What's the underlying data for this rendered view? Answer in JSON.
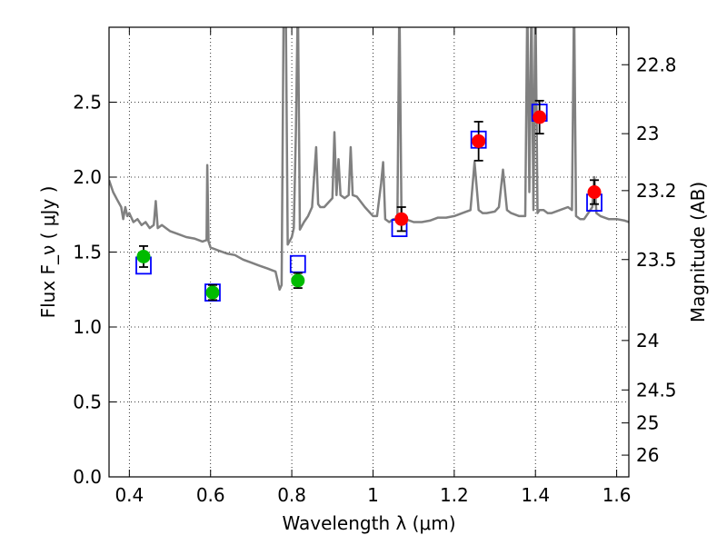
{
  "chart_data": {
    "type": "line",
    "title": "",
    "xlabel": "Wavelength  λ (μm)",
    "ylabel": "Flux  F_ν  ( μJy )",
    "y2label": "Magnitude (AB)",
    "xlim": [
      0.35,
      1.63
    ],
    "ylim": [
      0.0,
      3.0
    ],
    "grid": true,
    "xticks": [
      0.4,
      0.6,
      0.8,
      1.0,
      1.2,
      1.4,
      1.6
    ],
    "xtick_labels": [
      "0.4",
      "0.6",
      "0.8",
      "1",
      "1.2",
      "1.4",
      "1.6"
    ],
    "yticks": [
      0.0,
      0.5,
      1.0,
      1.5,
      2.0,
      2.5
    ],
    "ytick_labels": [
      "0.0",
      "0.5",
      "1.0",
      "1.5",
      "2.0",
      "2.5"
    ],
    "y2ticks": [
      {
        "label": "22.8",
        "flux": 2.75
      },
      {
        "label": "23",
        "flux": 2.29
      },
      {
        "label": "23.2",
        "flux": 1.91
      },
      {
        "label": "23.5",
        "flux": 1.45
      },
      {
        "label": "24",
        "flux": 0.91
      },
      {
        "label": "24.5",
        "flux": 0.58
      },
      {
        "label": "25",
        "flux": 0.36
      },
      {
        "label": "26",
        "flux": 0.145
      }
    ],
    "series": [
      {
        "kind": "model_spectrum",
        "color": "#808080",
        "x": [
          0.35,
          0.36,
          0.37,
          0.38,
          0.385,
          0.39,
          0.395,
          0.4,
          0.41,
          0.42,
          0.43,
          0.44,
          0.45,
          0.46,
          0.465,
          0.47,
          0.48,
          0.5,
          0.52,
          0.54,
          0.56,
          0.58,
          0.59,
          0.592,
          0.595,
          0.6,
          0.62,
          0.64,
          0.66,
          0.68,
          0.7,
          0.72,
          0.74,
          0.75,
          0.76,
          0.77,
          0.775,
          0.78,
          0.785,
          0.79,
          0.8,
          0.805,
          0.81,
          0.815,
          0.82,
          0.83,
          0.84,
          0.85,
          0.86,
          0.865,
          0.87,
          0.88,
          0.9,
          0.905,
          0.91,
          0.915,
          0.92,
          0.93,
          0.94,
          0.945,
          0.95,
          0.96,
          0.98,
          1.0,
          1.01,
          1.02,
          1.025,
          1.03,
          1.04,
          1.05,
          1.06,
          1.065,
          1.07,
          1.08,
          1.1,
          1.12,
          1.14,
          1.16,
          1.18,
          1.2,
          1.22,
          1.24,
          1.25,
          1.26,
          1.27,
          1.28,
          1.3,
          1.31,
          1.32,
          1.33,
          1.34,
          1.36,
          1.375,
          1.38,
          1.385,
          1.39,
          1.395,
          1.4,
          1.405,
          1.41,
          1.42,
          1.43,
          1.44,
          1.46,
          1.48,
          1.49,
          1.495,
          1.5,
          1.51,
          1.52,
          1.54,
          1.545,
          1.55,
          1.56,
          1.58,
          1.6,
          1.62,
          1.63
        ],
        "y": [
          1.98,
          1.9,
          1.85,
          1.8,
          1.72,
          1.8,
          1.74,
          1.76,
          1.7,
          1.72,
          1.68,
          1.7,
          1.66,
          1.68,
          1.84,
          1.66,
          1.68,
          1.64,
          1.62,
          1.6,
          1.59,
          1.57,
          1.58,
          2.08,
          1.57,
          1.53,
          1.51,
          1.49,
          1.48,
          1.45,
          1.43,
          1.41,
          1.39,
          1.38,
          1.37,
          1.25,
          1.28,
          3.2,
          3.2,
          1.55,
          1.6,
          1.66,
          2.3,
          3.2,
          1.65,
          1.7,
          1.74,
          1.8,
          2.2,
          1.82,
          1.8,
          1.8,
          1.86,
          2.3,
          1.88,
          2.12,
          1.88,
          1.86,
          1.88,
          2.2,
          1.88,
          1.87,
          1.8,
          1.74,
          1.74,
          1.96,
          2.1,
          1.72,
          1.7,
          1.72,
          1.72,
          3.2,
          1.74,
          1.72,
          1.7,
          1.7,
          1.71,
          1.73,
          1.73,
          1.74,
          1.76,
          1.78,
          2.1,
          1.78,
          1.76,
          1.76,
          1.77,
          1.8,
          2.05,
          1.78,
          1.76,
          1.74,
          1.74,
          3.2,
          1.9,
          3.2,
          1.78,
          3.2,
          1.76,
          1.78,
          1.78,
          1.76,
          1.76,
          1.78,
          1.8,
          1.78,
          3.2,
          1.74,
          1.72,
          1.72,
          1.8,
          2.0,
          1.76,
          1.74,
          1.72,
          1.72,
          1.71,
          1.7
        ]
      },
      {
        "kind": "model_photometry",
        "marker": "open-square",
        "color": "#0000ff",
        "x": [
          0.435,
          0.605,
          0.815,
          1.065,
          1.26,
          1.41,
          1.545
        ],
        "y": [
          1.41,
          1.23,
          1.42,
          1.66,
          2.25,
          2.43,
          1.83
        ]
      },
      {
        "kind": "observed",
        "marker": "filled-circle",
        "color": "#00bb00",
        "x": [
          0.435,
          0.605,
          0.815
        ],
        "y": [
          1.47,
          1.23,
          1.31
        ],
        "yerr": [
          0.07,
          0.05,
          0.05
        ]
      },
      {
        "kind": "observed",
        "marker": "filled-circle",
        "color": "#ff0000",
        "x": [
          1.07,
          1.26,
          1.41,
          1.545
        ],
        "y": [
          1.72,
          2.24,
          2.4,
          1.9
        ],
        "yerr": [
          0.08,
          0.13,
          0.11,
          0.08
        ]
      }
    ]
  }
}
